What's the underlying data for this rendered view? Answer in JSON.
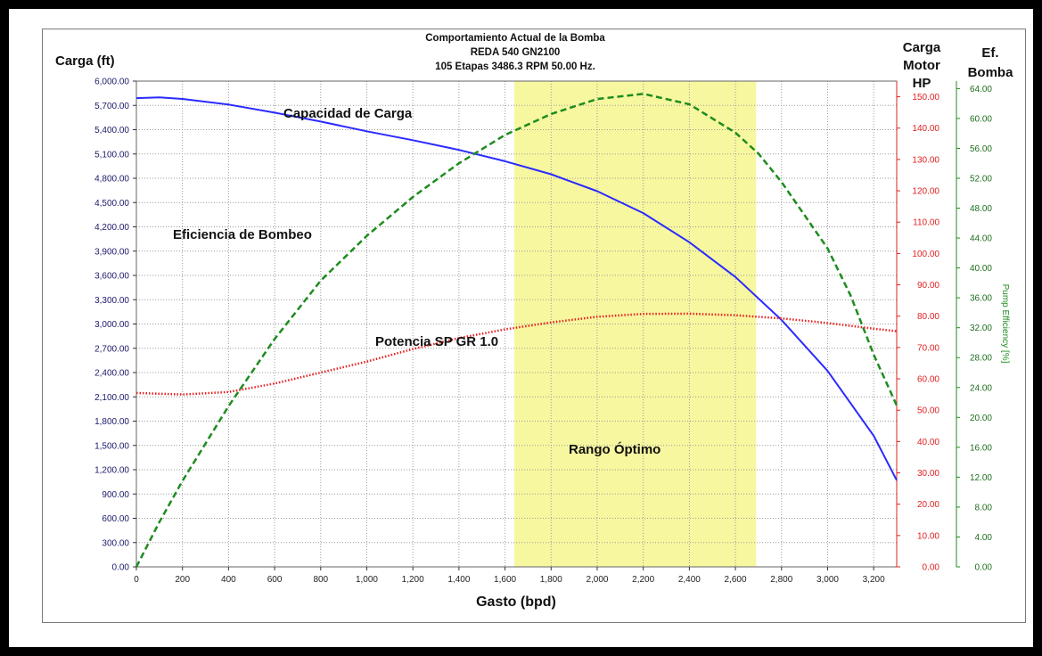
{
  "chart_data": {
    "type": "line",
    "title_lines": [
      "Comportamiento Actual de la Bomba",
      "REDA 540 GN2100",
      "105  Etapas  3486.3 RPM 50.00 Hz."
    ],
    "xlabel": "Gasto (bpd)",
    "y_left_label": "Carga (ft)",
    "y_motor_label_lines": [
      "Carga",
      "Motor",
      "HP"
    ],
    "y_eff_label_lines": [
      "Ef.",
      "Bomba"
    ],
    "y_eff_rotated_label": "Pump Efficiency [%]",
    "xlim": [
      0,
      3300
    ],
    "ylim_left": [
      0,
      6000
    ],
    "ylim_motor": [
      0,
      155
    ],
    "ylim_eff": [
      0,
      65
    ],
    "x_ticks": [
      0,
      200,
      400,
      600,
      800,
      1000,
      1200,
      1400,
      1600,
      1800,
      2000,
      2200,
      2400,
      2600,
      2800,
      3000,
      3200
    ],
    "x_tick_labels": [
      "0",
      "200",
      "400",
      "600",
      "800",
      "1,000",
      "1,200",
      "1,400",
      "1,600",
      "1,800",
      "2,000",
      "2,200",
      "2,400",
      "2,600",
      "2,800",
      "3,000",
      "3,200"
    ],
    "y_left_ticks": [
      0,
      300,
      600,
      900,
      1200,
      1500,
      1800,
      2100,
      2400,
      2700,
      3000,
      3300,
      3600,
      3900,
      4200,
      4500,
      4800,
      5100,
      5400,
      5700,
      6000
    ],
    "y_left_tick_labels": [
      "0.00",
      "300.00",
      "600.00",
      "900.00",
      "1,200.00",
      "1,500.00",
      "1,800.00",
      "2,100.00",
      "2,400.00",
      "2,700.00",
      "3,000.00",
      "3,300.00",
      "3,600.00",
      "3,900.00",
      "4,200.00",
      "4,500.00",
      "4,800.00",
      "5,100.00",
      "5,400.00",
      "5,700.00",
      "6,000.00"
    ],
    "y_motor_ticks": [
      0,
      10,
      20,
      30,
      40,
      50,
      60,
      70,
      80,
      90,
      100,
      110,
      120,
      130,
      140,
      150
    ],
    "y_motor_tick_labels": [
      "0.00",
      "10.00",
      "20.00",
      "30.00",
      "40.00",
      "50.00",
      "60.00",
      "70.00",
      "80.00",
      "90.00",
      "100.00",
      "110.00",
      "120.00",
      "130.00",
      "140.00",
      "150.00"
    ],
    "y_eff_ticks": [
      0,
      4,
      8,
      12,
      16,
      20,
      24,
      28,
      32,
      36,
      40,
      44,
      48,
      52,
      56,
      60,
      64
    ],
    "y_eff_tick_labels": [
      "0.00",
      "4.00",
      "8.00",
      "12.00",
      "16.00",
      "20.00",
      "24.00",
      "28.00",
      "32.00",
      "36.00",
      "40.00",
      "44.00",
      "48.00",
      "52.00",
      "56.00",
      "60.00",
      "64.00"
    ],
    "grid": true,
    "optimum_range": {
      "x_start": 1640,
      "x_end": 2690,
      "color": "#f7f7a0"
    },
    "series": [
      {
        "name": "Capacidad de Carga",
        "axis": "left",
        "color": "#2a2aff",
        "dash": "solid",
        "x": [
          0,
          100,
          200,
          400,
          600,
          800,
          1000,
          1200,
          1400,
          1600,
          1800,
          2000,
          2200,
          2400,
          2600,
          2800,
          3000,
          3200,
          3300
        ],
        "y": [
          5790,
          5800,
          5780,
          5710,
          5610,
          5500,
          5380,
          5270,
          5150,
          5010,
          4850,
          4640,
          4370,
          4010,
          3580,
          3050,
          2420,
          1620,
          1070
        ]
      },
      {
        "name": "Eficiencia de Bombeo",
        "axis": "eff",
        "color": "#1e8c1e",
        "dash": "dashed",
        "x": [
          0,
          100,
          200,
          400,
          600,
          800,
          1000,
          1200,
          1400,
          1600,
          1800,
          2000,
          2200,
          2400,
          2600,
          2700,
          2800,
          3000,
          3100,
          3200,
          3300
        ],
        "y": [
          0,
          6,
          11.5,
          21.5,
          30.5,
          38.3,
          44.3,
          49.5,
          54,
          57.8,
          60.6,
          62.6,
          63.3,
          61.9,
          58.1,
          55.3,
          51.5,
          42.6,
          36.3,
          28.4,
          21.6
        ]
      },
      {
        "name": "Potencia SP GR 1.0",
        "axis": "motor",
        "color": "#e82020",
        "dash": "dotted",
        "x": [
          0,
          200,
          400,
          600,
          800,
          1000,
          1200,
          1400,
          1600,
          1800,
          2000,
          2200,
          2400,
          2600,
          2800,
          3000,
          3200,
          3300
        ],
        "y": [
          55.5,
          55,
          55.8,
          58.5,
          62,
          65.5,
          69.5,
          73,
          75.8,
          78,
          79.8,
          80.7,
          80.8,
          80.3,
          79.3,
          77.8,
          76,
          75.2
        ]
      }
    ],
    "annotations": [
      "Capacidad de Carga",
      "Eficiencia de Bombeo",
      "Potencia SP GR 1.0",
      "Rango Óptimo"
    ]
  }
}
